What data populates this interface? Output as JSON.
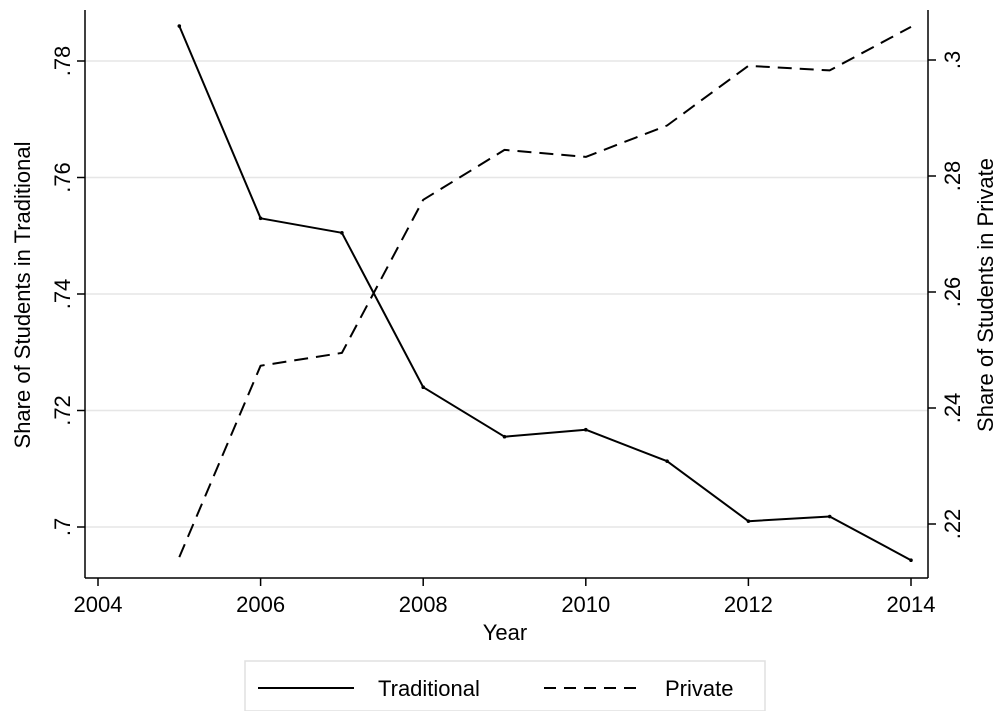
{
  "chart_data": {
    "type": "line",
    "x": [
      2005,
      2006,
      2007,
      2008,
      2009,
      2010,
      2011,
      2012,
      2013,
      2014
    ],
    "xlabel": "Year",
    "xticks": [
      "2004",
      "2006",
      "2008",
      "2010",
      "2012",
      "2014"
    ],
    "xlim": [
      2004,
      2014
    ],
    "series": [
      {
        "name": "Traditional",
        "axis": "left",
        "style": "solid",
        "values": [
          0.786,
          0.753,
          0.7505,
          0.724,
          0.7155,
          0.7167,
          0.7113,
          0.701,
          0.7018,
          0.6943
        ]
      },
      {
        "name": "Private",
        "axis": "right",
        "style": "dashed",
        "values": [
          0.2143,
          0.2473,
          0.2495,
          0.2759,
          0.2845,
          0.2833,
          0.2887,
          0.299,
          0.2982,
          0.3057
        ]
      }
    ],
    "y_left": {
      "label": "Share of Students in Traditional",
      "ticks": [
        ".7",
        ".72",
        ".74",
        ".76",
        ".78"
      ],
      "tick_values": [
        0.7,
        0.72,
        0.74,
        0.76,
        0.78
      ]
    },
    "y_right": {
      "label": "Share of Students in Private",
      "ticks": [
        ".22",
        ".24",
        ".26",
        ".28",
        ".3"
      ],
      "tick_values": [
        0.22,
        0.24,
        0.26,
        0.28,
        0.3
      ]
    },
    "grid": true,
    "legend_position": "bottom"
  }
}
